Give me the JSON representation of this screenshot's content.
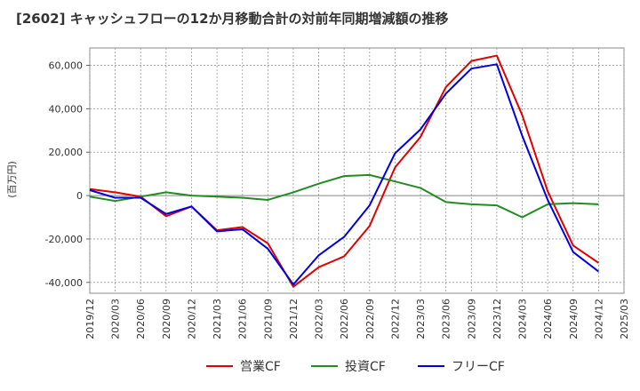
{
  "chart_data": {
    "type": "line",
    "title": "[2602]  キャッシュフローの12か月移動合計の対前年同期増減額の推移",
    "ylabel": "(百万円)",
    "xlabel": "",
    "ylim": [
      -45000,
      68000
    ],
    "y_ticks": [
      -40000,
      -20000,
      0,
      20000,
      40000,
      60000
    ],
    "y_tick_labels": [
      "-40,000",
      "-20,000",
      "0",
      "20,000",
      "40,000",
      "60,000"
    ],
    "x_ticks": [
      "2019/12",
      "2020/03",
      "2020/06",
      "2020/09",
      "2020/12",
      "2021/03",
      "2021/06",
      "2021/09",
      "2021/12",
      "2022/03",
      "2022/06",
      "2022/09",
      "2022/12",
      "2023/03",
      "2023/06",
      "2023/09",
      "2023/12",
      "2024/03",
      "2024/06",
      "2024/09",
      "2024/12",
      "2025/03"
    ],
    "x": [
      "2019/12",
      "2020/03",
      "2020/06",
      "2020/09",
      "2020/12",
      "2021/03",
      "2021/06",
      "2021/09",
      "2021/12",
      "2022/03",
      "2022/06",
      "2022/09",
      "2022/12",
      "2023/03",
      "2023/06",
      "2023/09",
      "2023/12",
      "2024/03",
      "2024/06",
      "2024/09",
      "2024/12"
    ],
    "grid": true,
    "legend_position": "bottom",
    "series": [
      {
        "name": "営業CF",
        "color": "#e00000",
        "values": [
          3000,
          1500,
          -500,
          -9500,
          -5000,
          -16000,
          -14500,
          -22000,
          -42000,
          -33000,
          -28000,
          -14000,
          13000,
          27000,
          50000,
          62000,
          64500,
          37000,
          2000,
          -23000,
          -31000
        ]
      },
      {
        "name": "投資CF",
        "color": "#228b22",
        "values": [
          -500,
          -2500,
          -500,
          1500,
          0,
          -500,
          -1000,
          -2000,
          1500,
          5500,
          9000,
          9500,
          6500,
          3500,
          -3000,
          -4000,
          -4500,
          -10000,
          -4000,
          -3500,
          -4000
        ]
      },
      {
        "name": "フリーCF",
        "color": "#0000dd",
        "values": [
          2500,
          -1000,
          -1000,
          -8500,
          -5000,
          -16500,
          -15500,
          -24500,
          -41000,
          -27500,
          -19000,
          -4500,
          19500,
          30500,
          47000,
          58500,
          60500,
          27500,
          -2000,
          -26000,
          -35000
        ]
      }
    ]
  }
}
